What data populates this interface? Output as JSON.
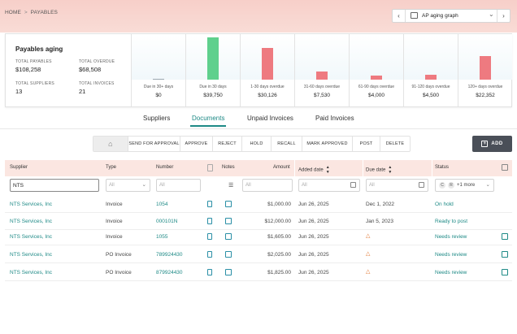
{
  "breadcrumb": {
    "home": "HOME",
    "separator": ">",
    "current": "PAYABLES"
  },
  "graph_selector": {
    "value": "AP aging graph",
    "prev_icon": "chevron-left-icon",
    "next_icon": "chevron-right-icon"
  },
  "summary": {
    "title": "Payables aging",
    "total_payables_label": "TOTAL PAYABLES",
    "total_payables": "$108,258",
    "total_overdue_label": "TOTAL OVERDUE",
    "total_overdue": "$68,508",
    "total_suppliers_label": "TOTAL SUPPLIERS",
    "total_suppliers": "13",
    "total_invoices_label": "TOTAL INVOICES",
    "total_invoices": "21"
  },
  "chart_data": {
    "type": "bar",
    "categories": [
      "Due in 30+ days",
      "Due in 30 days",
      "1-30 days overdue",
      "31-60 days overdue",
      "61-90 days overdue",
      "91-120 days overdue",
      "120+ days overdue"
    ],
    "values": [
      0,
      39750,
      30126,
      7530,
      4000,
      4500,
      22352
    ],
    "labels": [
      "$0",
      "$39,750",
      "$30,126",
      "$7,530",
      "$4,000",
      "$4,500",
      "$22,352"
    ],
    "colors": [
      "#9aa7b0",
      "#5fd08d",
      "#ee7a80",
      "#ee7a80",
      "#ee7a80",
      "#ee7a80",
      "#ee7a80"
    ]
  },
  "tabs": [
    "Suppliers",
    "Documents",
    "Unpaid Invoices",
    "Paid Invoices"
  ],
  "active_tab": "Documents",
  "actions": [
    "SEND FOR APPROVAL",
    "APPROVE",
    "REJECT",
    "HOLD",
    "RECALL",
    "MARK APPROVED",
    "POST",
    "DELETE"
  ],
  "add_label": "ADD",
  "columns": {
    "supplier": "Supplier",
    "type": "Type",
    "number": "Number",
    "notes": "Notes",
    "amount": "Amount",
    "added_date": "Added date",
    "due_date": "Due date",
    "status": "Status"
  },
  "filters": {
    "supplier": "NTS",
    "type_placeholder": "All",
    "number_placeholder": "All",
    "amount_placeholder": "All",
    "added_placeholder": "All",
    "due_placeholder": "All",
    "status_more": "+1 more",
    "status_pill_1": "C",
    "status_pill_2": "R"
  },
  "rows": [
    {
      "supplier": "NTS Services, Inc",
      "type": "Invoice",
      "number": "1054",
      "amount": "$1,000.00",
      "added": "Jun 26, 2025",
      "due": "Dec 1, 2022",
      "due_warning": false,
      "status": "On hold",
      "editable": false
    },
    {
      "supplier": "NTS Services, Inc",
      "type": "Invoice",
      "number": "000101N",
      "amount": "$12,000.00",
      "added": "Jun 26, 2025",
      "due": "Jan 5, 2023",
      "due_warning": false,
      "status": "Ready to post",
      "editable": false
    },
    {
      "supplier": "NTS Services, Inc",
      "type": "Invoice",
      "number": "1055",
      "amount": "$1,605.00",
      "added": "Jun 26, 2025",
      "due": "",
      "due_warning": true,
      "status": "Needs review",
      "editable": true
    },
    {
      "supplier": "NTS Services, Inc",
      "type": "PO Invoice",
      "number": "789924430",
      "amount": "$2,025.00",
      "added": "Jun 26, 2025",
      "due": "",
      "due_warning": true,
      "status": "Needs review",
      "editable": true
    },
    {
      "supplier": "NTS Services, Inc",
      "type": "PO Invoice",
      "number": "879924430",
      "amount": "$1,825.00",
      "added": "Jun 26, 2025",
      "due": "",
      "due_warning": true,
      "status": "Needs review",
      "editable": true
    }
  ]
}
